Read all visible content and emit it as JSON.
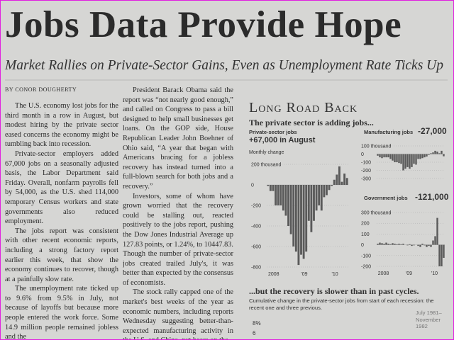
{
  "headline": "Jobs Data Provide Hope",
  "deck": "Market Rallies on Private-Sector Gains, Even as Unemployment Rate Ticks Up",
  "byline": "By Conor Dougherty",
  "columns": [
    [
      "The U.S. economy lost jobs for the third month in a row in August, but modest hiring by the private sector eased concerns the economy might be tumbling back into recession.",
      "Private-sector employers added 67,000 jobs on a seasonally adjusted basis, the Labor Department said Friday. Overall, nonfarm payrolls fell by 54,000, as the U.S. shed 114,000 temporary Census workers and state governments also reduced employment.",
      "The jobs report was consistent with other recent economic reports, including a strong factory report earlier this week, that show the economy continues to recover, though at a painfully slow rate.",
      "The unemployment rate ticked up to 9.6% from 9.5% in July, not because of layoffs but because more people entered the work force. Some 14.9 million people remained jobless and the"
    ],
    [
      "President Barack Obama said the report was “not nearly good enough,” and called on Congress to pass a bill designed to help small businesses get loans. On the GOP side, House Republican Leader John Boehner of Ohio said, “A year that began with Americans bracing for a jobless recovery has instead turned into a full-blown search for both jobs and a recovery.”",
      "Investors, some of whom have grown worried that the recovery could be stalling out, reacted positively to the jobs report, pushing the Dow Jones Industrial Average up 127.83 points, or 1.24%, to 10447.83. Though the number of private-sector jobs created trailed July's, it was better than expected by the consensus of economists.",
      "The stock rally capped one of the market's best weeks of the year as economic numbers, including reports Wednesday suggesting better-than-expected manufacturing activity in the U.S. and China, put bears on the"
    ]
  ],
  "graphic": {
    "kicker": "Long Road Back",
    "headline_top": "The private sector is adding jobs...",
    "headline_bottom": "...but the recovery is slower than in past cycles.",
    "note": "Cumulative change in the private-sector jobs from start of each recession: the recent one and three previous.",
    "period_label": "July 1981–November 1982",
    "lower_ticks": [
      "8%",
      "6"
    ]
  },
  "chart_data": [
    {
      "type": "bar",
      "title": "Private-sector jobs",
      "annotation": "+67,000 in August",
      "subtitle": "Monthly change",
      "color": "#5a5a5a",
      "categories": [
        "2008",
        null,
        null,
        null,
        null,
        null,
        null,
        null,
        null,
        null,
        null,
        null,
        "'09",
        null,
        null,
        null,
        null,
        null,
        null,
        null,
        null,
        null,
        null,
        null,
        "'10",
        null,
        null,
        null,
        null,
        null,
        null,
        null
      ],
      "values": [
        -10,
        -60,
        -60,
        -200,
        -200,
        -200,
        -250,
        -300,
        -400,
        -480,
        -600,
        -650,
        -780,
        -680,
        -720,
        -650,
        -350,
        -460,
        -350,
        -250,
        -200,
        -250,
        -120,
        -100,
        -50,
        -10,
        50,
        100,
        180,
        30,
        110,
        67
      ],
      "ylim": [
        -800,
        200
      ],
      "yticks": [
        {
          "value": 200,
          "label": "200 thousand"
        },
        0,
        -200,
        -400,
        -600,
        -800
      ]
    },
    {
      "type": "bar",
      "title": "Manufacturing jobs",
      "annotation": "-27,000",
      "color": "#5a5a5a",
      "values": [
        -20,
        -40,
        -50,
        -40,
        -40,
        -40,
        -60,
        -80,
        -100,
        -100,
        -110,
        -120,
        -200,
        -180,
        -160,
        -180,
        -160,
        -120,
        -130,
        -60,
        -60,
        -50,
        -40,
        -30,
        -10,
        10,
        20,
        40,
        30,
        10,
        40,
        -27
      ],
      "ylim": [
        -300,
        100
      ],
      "yticks": [
        {
          "value": 100,
          "label": "100 thousand"
        },
        0,
        -100,
        -200,
        -300
      ]
    },
    {
      "type": "bar",
      "title": "Government jobs",
      "annotation": "-121,000",
      "color": "#5a5a5a",
      "categories": [
        "2008",
        null,
        null,
        null,
        null,
        null,
        null,
        null,
        null,
        null,
        null,
        null,
        "'09",
        null,
        null,
        null,
        null,
        null,
        null,
        null,
        null,
        null,
        null,
        null,
        "'10",
        null,
        null,
        null,
        null,
        null,
        null,
        null
      ],
      "values": [
        10,
        20,
        15,
        10,
        20,
        10,
        5,
        15,
        10,
        5,
        10,
        5,
        10,
        0,
        -5,
        5,
        -10,
        -5,
        0,
        -10,
        -20,
        10,
        -5,
        -20,
        -10,
        -20,
        40,
        80,
        250,
        -200,
        -200,
        -121
      ],
      "ylim": [
        -200,
        300
      ],
      "yticks": [
        {
          "value": 300,
          "label": "300 thousand"
        },
        200,
        100,
        0,
        -100,
        -200
      ]
    }
  ]
}
